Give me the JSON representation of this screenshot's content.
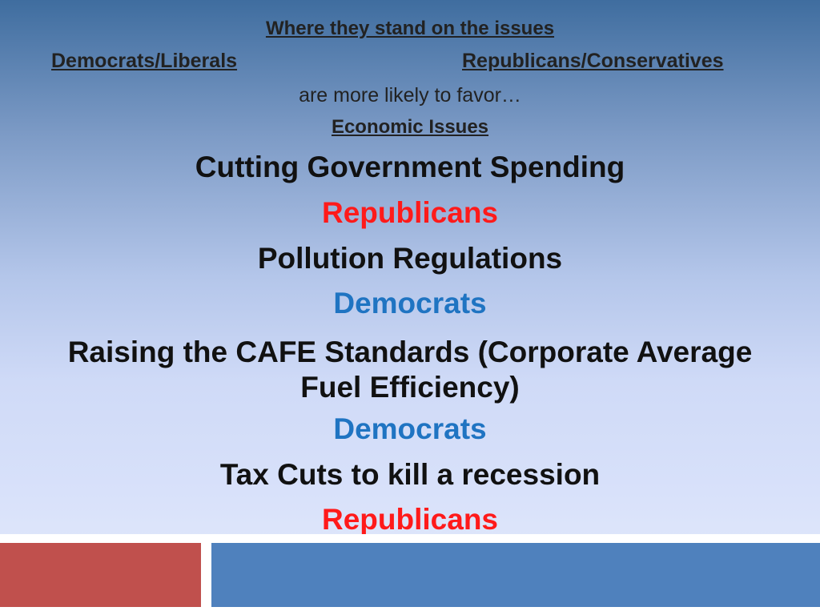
{
  "slide": {
    "header": {
      "title": "Where they stand on the issues",
      "left_label": "Democrats/Liberals",
      "right_label": "Republicans/Conservatives",
      "favor_text": "are more likely to favor…",
      "section_title": "Economic Issues"
    },
    "issues": [
      {
        "issue": "Cutting Government Spending",
        "party": "Republicans"
      },
      {
        "issue": "Pollution Regulations",
        "party": "Democrats"
      },
      {
        "issue_line1": "Raising the CAFE Standards (Corporate Average",
        "issue_line2": "Fuel Efficiency)",
        "party": "Democrats"
      },
      {
        "issue": "Tax Cuts to kill a recession",
        "party": "Republicans"
      }
    ],
    "colors": {
      "republicans": "#ff1a1a",
      "democrats": "#1f74c2",
      "footer_left": "#c0504d",
      "footer_right": "#4f81bd"
    }
  }
}
